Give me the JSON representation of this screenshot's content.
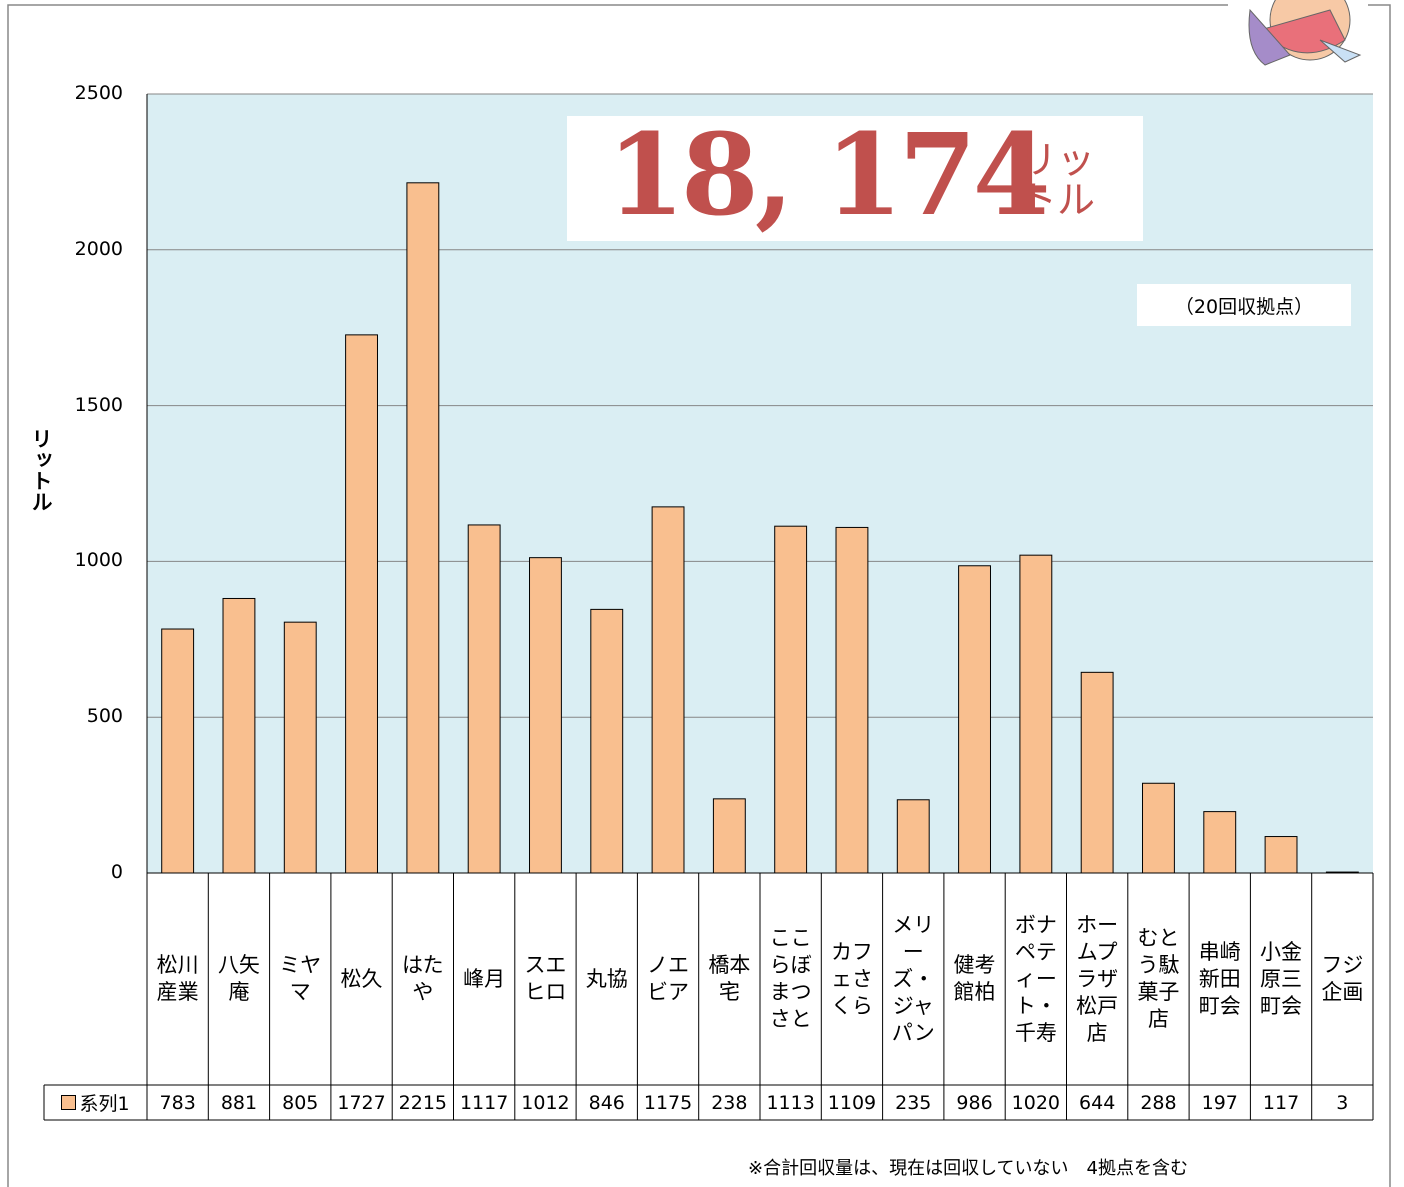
{
  "chart_data": {
    "type": "bar",
    "title": "18, 174",
    "title_unit": "リットル",
    "subtitle": "（20回収拠点）",
    "y_label": "リットル",
    "note": "※合計回収量は、現在は回収していない　4拠点を含む",
    "categories": [
      "松川産業",
      "八矢庵",
      "ミヤマ",
      "松久",
      "はたや",
      "峰月",
      "スエヒロ",
      "丸協",
      "ノエビア",
      "橋本宅",
      "ここらぼまつさと",
      "カフェさくら",
      "メリーズ・ジャパン",
      "健考館柏",
      "ボナペティート・千寿",
      "ホームプラザ松戸店",
      "むとう駄菓子店",
      "串崎新田町会",
      "小金原三町会",
      "フジ企画"
    ],
    "series": [
      {
        "name": "系列1",
        "color": "#f9bf8f",
        "values": [
          783,
          881,
          805,
          1727,
          2215,
          1117,
          1012,
          846,
          1175,
          238,
          1113,
          1109,
          235,
          986,
          1020,
          644,
          288,
          197,
          117,
          3
        ]
      }
    ],
    "ylim": [
      0,
      2500
    ],
    "yticks": [
      0,
      500,
      1000,
      1500,
      2000,
      2500
    ],
    "grid": true
  }
}
